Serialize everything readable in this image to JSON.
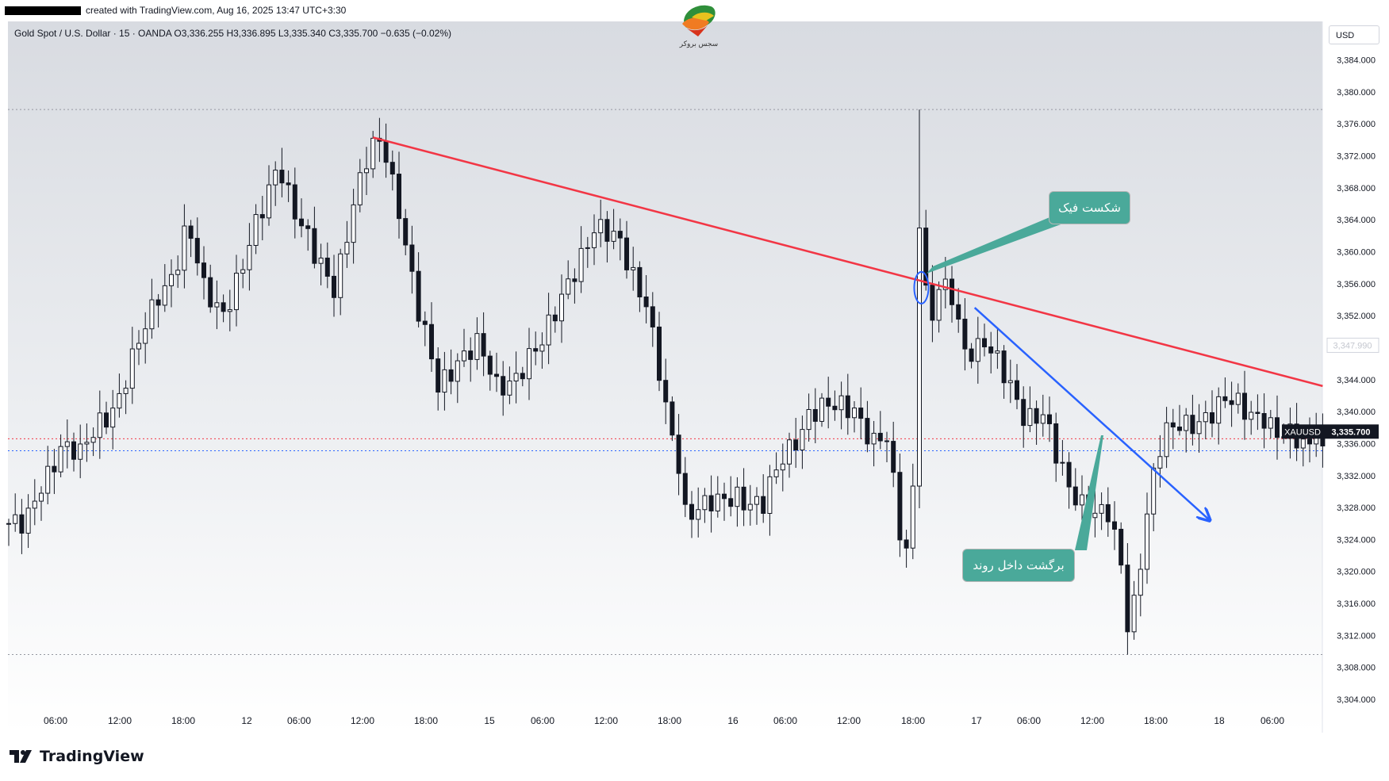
{
  "header": {
    "created_text": "created with TradingView.com, Aug 16, 2025 13:47 UTC+3:30",
    "logo_text": "سجس بروکر"
  },
  "symbol_bar": {
    "text": "Gold Spot / U.S. Dollar · 15 · OANDA  O3,336.255  H3,336.895  L3,335.340  C3,335.700  −0.635 (−0.02%)"
  },
  "currency_label": "USD",
  "brand": {
    "name": "TradingView"
  },
  "callouts": [
    {
      "text": "شکست فیک"
    },
    {
      "text": "برگشت داخل روند"
    }
  ],
  "chart_data": {
    "type": "candlestick",
    "symbol": "XAUUSD",
    "timeframe": "15",
    "ylim": [
      3302,
      3388
    ],
    "y_ticks": [
      3304,
      3308,
      3312,
      3316,
      3320,
      3324,
      3328,
      3332,
      3336,
      3340,
      3344,
      3348,
      3352,
      3356,
      3360,
      3364,
      3368,
      3372,
      3376,
      3380,
      3384
    ],
    "y_tick_labels": [
      "3,304.000",
      "3,308.000",
      "3,312.000",
      "3,316.000",
      "3,320.000",
      "3,324.000",
      "3,328.000",
      "3,332.000",
      "3,336.000",
      "3,340.000",
      "3,344.000",
      "3,348.000",
      "3,352.000",
      "3,356.000",
      "3,360.000",
      "3,364.000",
      "3,368.000",
      "3,372.000",
      "3,376.000",
      "3,380.000",
      "3,384.000"
    ],
    "x_tick_labels": [
      "06:00",
      "12:00",
      "18:00",
      "12",
      "06:00",
      "12:00",
      "18:00",
      "15",
      "06:00",
      "12:00",
      "18:00",
      "16",
      "06:00",
      "12:00",
      "18:00",
      "17",
      "06:00",
      "12:00",
      "18:00",
      "18",
      "06:00"
    ],
    "current_price": {
      "symbol_label": "XAUUSD",
      "value_label": "3,335.700",
      "value": 3335.7
    },
    "faded_price_label": "3,347.990",
    "horizontal_levels": [
      3377.8,
      3309.6,
      3336.6,
      3335.1
    ],
    "close_path": [
      [
        0,
        3326
      ],
      [
        2.5,
        3325
      ],
      [
        5,
        3331
      ],
      [
        8,
        3336
      ],
      [
        11,
        3334
      ],
      [
        14,
        3339
      ],
      [
        17,
        3342
      ],
      [
        20,
        3348
      ],
      [
        23,
        3355
      ],
      [
        25.5,
        3358
      ],
      [
        27.5,
        3363
      ],
      [
        30,
        3355
      ],
      [
        33,
        3353
      ],
      [
        36,
        3358
      ],
      [
        39,
        3365
      ],
      [
        41.5,
        3372
      ],
      [
        44,
        3365
      ],
      [
        47,
        3359
      ],
      [
        50,
        3356
      ],
      [
        53,
        3366
      ],
      [
        55.5,
        3372
      ],
      [
        57.5,
        3374
      ],
      [
        60,
        3366
      ],
      [
        63,
        3352
      ],
      [
        66,
        3343
      ],
      [
        69,
        3347
      ],
      [
        72,
        3348
      ],
      [
        75,
        3343
      ],
      [
        78,
        3345
      ],
      [
        82,
        3348
      ],
      [
        86,
        3357
      ],
      [
        90,
        3362
      ],
      [
        94,
        3362
      ],
      [
        98,
        3353
      ],
      [
        101,
        3340
      ],
      [
        103,
        3334
      ],
      [
        104,
        3328
      ],
      [
        106,
        3328
      ],
      [
        109,
        3328
      ],
      [
        112,
        3330
      ],
      [
        116,
        3328
      ],
      [
        119,
        3334
      ],
      [
        123,
        3340
      ],
      [
        126,
        3340
      ],
      [
        130,
        3341
      ],
      [
        133,
        3336
      ],
      [
        135,
        3336
      ],
      [
        137,
        3325
      ],
      [
        138.5,
        3322
      ],
      [
        139.5,
        3340
      ],
      [
        140,
        3365
      ],
      [
        141.5,
        3350
      ],
      [
        143,
        3355
      ],
      [
        145,
        3354
      ],
      [
        147,
        3348
      ],
      [
        150,
        3349
      ],
      [
        153,
        3344
      ],
      [
        156,
        3340
      ],
      [
        159,
        3340
      ],
      [
        161,
        3334
      ],
      [
        163,
        3330
      ],
      [
        165,
        3329
      ],
      [
        167,
        3328
      ],
      [
        169,
        3327
      ],
      [
        171,
        3320
      ],
      [
        172,
        3313
      ],
      [
        173,
        3316
      ],
      [
        174,
        3322
      ],
      [
        175,
        3328
      ],
      [
        176.5,
        3335
      ],
      [
        178,
        3337
      ],
      [
        181,
        3338
      ],
      [
        184,
        3340
      ],
      [
        187,
        3341
      ],
      [
        190,
        3340
      ],
      [
        193,
        3340
      ],
      [
        195,
        3337
      ],
      [
        198,
        3336
      ],
      [
        200,
        3336
      ],
      [
        201,
        3340
      ],
      [
        202,
        3345
      ]
    ],
    "annotations": [
      {
        "type": "trendline",
        "color": "#f23645",
        "from": [
          56,
          3374.3
        ],
        "to": [
          202,
          3343.2
        ]
      },
      {
        "type": "trendline",
        "color": "#2962ff",
        "from": [
          148.5,
          3353
        ],
        "to": [
          184.5,
          3326.5
        ],
        "arrow": true
      },
      {
        "type": "ellipse",
        "color": "#2962ff",
        "center": [
          140.3,
          3355.5
        ]
      }
    ]
  }
}
